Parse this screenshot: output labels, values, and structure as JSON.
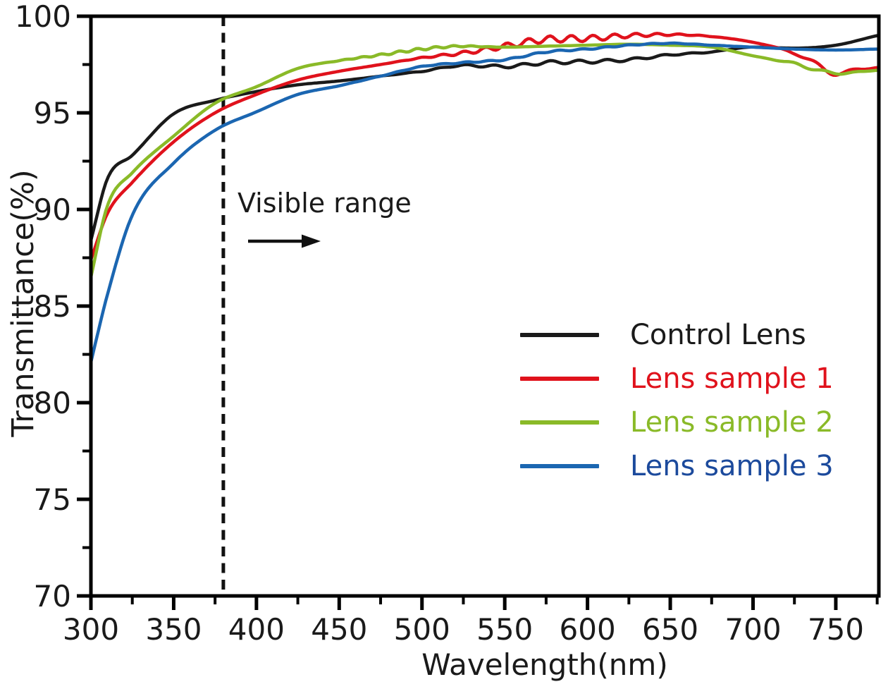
{
  "chart_data": {
    "type": "line",
    "title": "",
    "xlabel": "Wavelength(nm)",
    "ylabel": "Transmittance(%)",
    "xlim": [
      300,
      776
    ],
    "ylim": [
      70,
      100
    ],
    "grid": false,
    "legend_position": "inside lower right",
    "x_major_ticks": [
      300,
      350,
      400,
      450,
      500,
      550,
      600,
      650,
      700,
      750
    ],
    "x_minor_ticks": [
      325,
      375,
      425,
      475,
      525,
      575,
      625,
      675,
      725,
      775
    ],
    "y_major_ticks": [
      70,
      75,
      80,
      85,
      90,
      95,
      100
    ],
    "y_minor_ticks": [
      72.5,
      77.5,
      82.5,
      87.5,
      92.5,
      97.5
    ],
    "annotation": {
      "text": "Visible range",
      "line_nm": 380,
      "arrow": "right"
    },
    "axis_color": "#000000",
    "x_anchor_nm": [
      300,
      310,
      325,
      350,
      375,
      400,
      425,
      450,
      475,
      500,
      525,
      550,
      575,
      600,
      625,
      650,
      675,
      700,
      725,
      750,
      775
    ],
    "series": [
      {
        "name": "Control Lens",
        "color": "#1a1a1a",
        "values": [
          88.4,
          91.6,
          92.8,
          94.95,
          95.65,
          96.1,
          96.45,
          96.65,
          96.9,
          97.15,
          97.45,
          97.4,
          97.6,
          97.65,
          97.75,
          98.0,
          98.15,
          98.4,
          98.35,
          98.5,
          99.0
        ],
        "ripple": {
          "amp": 0.09,
          "period": 17,
          "from": 460,
          "to": 710,
          "phase": 2
        }
      },
      {
        "name": "Lens sample 1",
        "color": "#e0121c",
        "values": [
          87.4,
          89.8,
          91.4,
          93.5,
          95.0,
          95.95,
          96.7,
          97.15,
          97.5,
          97.85,
          98.1,
          98.45,
          98.8,
          98.85,
          99.0,
          99.05,
          98.95,
          98.65,
          98.1,
          97.1,
          97.35
        ],
        "ripple": {
          "amp": 0.17,
          "period": 13,
          "from": 470,
          "to": 690,
          "phase": 0
        },
        "ripple2": {
          "amp": 0.17,
          "period": 24,
          "from": 712,
          "to": 778,
          "phase": 1.2
        }
      },
      {
        "name": "Lens sample 2",
        "color": "#8aba28",
        "values": [
          86.5,
          90.2,
          91.9,
          93.8,
          95.5,
          96.35,
          97.3,
          97.7,
          98.0,
          98.3,
          98.45,
          98.4,
          98.45,
          98.5,
          98.55,
          98.5,
          98.4,
          97.95,
          97.55,
          97.05,
          97.2
        ],
        "ripple": {
          "amp": 0.06,
          "period": 11,
          "from": 430,
          "to": 560,
          "phase": 1
        },
        "ripple2": {
          "amp": 0.08,
          "period": 20,
          "from": 700,
          "to": 778,
          "phase": 0.5
        }
      },
      {
        "name": "Lens sample 3",
        "color": "#1b66b1",
        "label_color": "#1c4a9c",
        "values": [
          82.1,
          85.6,
          89.7,
          92.4,
          94.1,
          95.05,
          95.95,
          96.4,
          96.9,
          97.4,
          97.6,
          97.75,
          98.15,
          98.3,
          98.5,
          98.6,
          98.5,
          98.4,
          98.3,
          98.25,
          98.3
        ],
        "ripple": {
          "amp": 0.035,
          "period": 14,
          "from": 420,
          "to": 720,
          "phase": 4
        }
      }
    ]
  }
}
